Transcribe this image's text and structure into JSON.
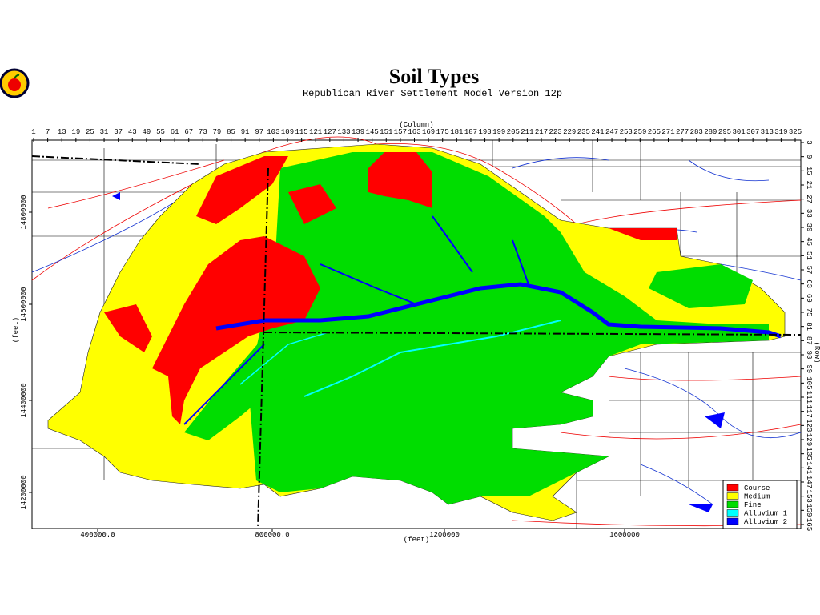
{
  "header": {
    "title": "Soil Types",
    "subtitle": "Republican River Settlement Model Version 12p"
  },
  "axes": {
    "column_label": "(Column)",
    "columns": [
      1,
      7,
      13,
      19,
      25,
      31,
      37,
      43,
      49,
      55,
      61,
      67,
      73,
      79,
      85,
      91,
      97,
      103,
      109,
      115,
      121,
      127,
      133,
      139,
      145,
      151,
      157,
      163,
      169,
      175,
      181,
      187,
      193,
      199,
      205,
      211,
      217,
      223,
      229,
      235,
      241,
      247,
      253,
      259,
      265,
      271,
      277,
      283,
      289,
      295,
      301,
      307,
      313,
      319,
      325
    ],
    "row_label": "(Row)",
    "rows": [
      3,
      9,
      15,
      21,
      27,
      33,
      39,
      45,
      51,
      57,
      63,
      69,
      75,
      81,
      87,
      93,
      99,
      105,
      111,
      117,
      123,
      129,
      135,
      141,
      147,
      153,
      159,
      165
    ],
    "x_label": "(feet)",
    "x_ticks": [
      "400000.0",
      "800000.0",
      "1200000",
      "1600000"
    ],
    "y_label": "(feet)",
    "y_ticks": [
      "14800000",
      "14600000",
      "14400000",
      "14200000"
    ]
  },
  "legend": [
    {
      "label": "Course",
      "color": "#ff0000"
    },
    {
      "label": "Medium",
      "color": "#ffff00"
    },
    {
      "label": "Fine",
      "color": "#00dd00"
    },
    {
      "label": "Alluvium 1",
      "color": "#00ffff"
    },
    {
      "label": "Alluvium 2",
      "color": "#0000ff"
    }
  ]
}
